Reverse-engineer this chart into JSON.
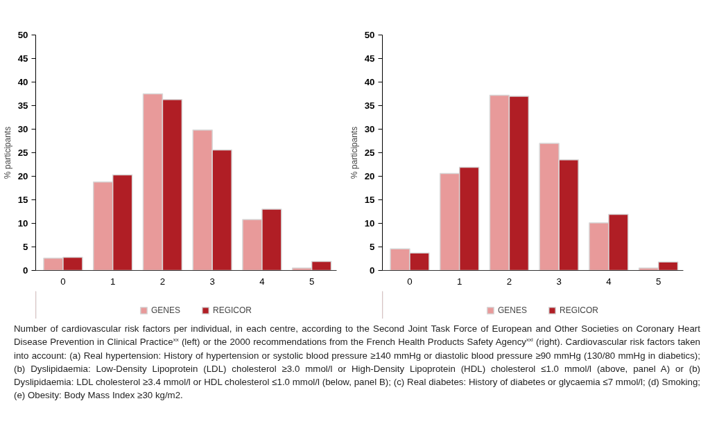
{
  "chart_data": [
    {
      "type": "bar",
      "categories": [
        "0",
        "1",
        "2",
        "3",
        "4",
        "5"
      ],
      "ylabel": "% participants",
      "ylim": [
        0,
        50
      ],
      "yticks": [
        0,
        5,
        10,
        15,
        20,
        25,
        30,
        35,
        40,
        45,
        50
      ],
      "grid": false,
      "legend": "bottom",
      "series": [
        {
          "name": "GENES",
          "color": "#e89a9a",
          "values": [
            2.6,
            18.8,
            37.5,
            29.8,
            10.8,
            0.5
          ]
        },
        {
          "name": "REGICOR",
          "color": "#b01e25",
          "values": [
            2.8,
            20.3,
            36.3,
            25.6,
            13.0,
            1.9
          ]
        }
      ],
      "annotations": [
        "Number of cardiovascular risk factors per individual, in each centre, according to the Second Joint Task Force of European and Other Societies on Coronary Heart Disease Prevention in Clinical Practice$^{xx}$ (left) or the 2000 recommendations from the French Health Products Safety Agency$^{xxi}$ (right). Cardiovascular risk factors taken into account: (a) Real hypertension: History of hypertension or systolic blood pressure ≥140 mmHg or diastolic blood pressure ≥90 mmHg (130/80 mmHg in diabetics); (b) Dyslipidaemia: Low-Density Lipoprotein (LDL) cholesterol ≥3.0 mmol/l or High-Density Lipoprotein (HDL) cholesterol ≤1.0 mmol/l (above, panel A) or (b) Dyslipidaemia: LDL cholesterol ≥3.4 mmol/l or HDL cholesterol ≤1.0 mmol/l (below, panel B); (c) Real diabetes: History of diabetes or glycaemia ≤7 mmol/l; (d) Smoking;  (e) Obesity: Body Mass Index ≥30 kg/m2."
      ]
    },
    {
      "type": "bar",
      "categories": [
        "0",
        "1",
        "2",
        "3",
        "4",
        "5"
      ],
      "ylabel": "% participants",
      "ylim": [
        0,
        50
      ],
      "yticks": [
        0,
        5,
        10,
        15,
        20,
        25,
        30,
        35,
        40,
        45,
        50
      ],
      "grid": false,
      "legend": "bottom",
      "series": [
        {
          "name": "GENES",
          "color": "#e89a9a",
          "values": [
            4.6,
            20.6,
            37.2,
            27.0,
            10.1,
            0.5
          ]
        },
        {
          "name": "REGICOR",
          "color": "#b01e25",
          "values": [
            3.7,
            21.9,
            37.0,
            23.5,
            11.9,
            1.8
          ]
        }
      ]
    }
  ]
}
